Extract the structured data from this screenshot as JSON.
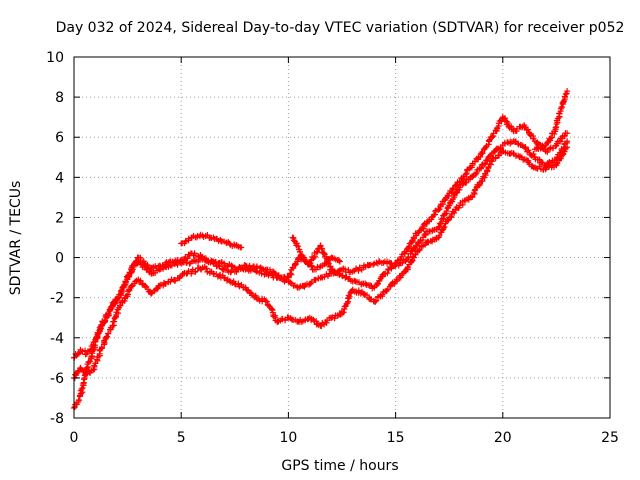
{
  "chart_data": {
    "type": "scatter",
    "title": "Day 032 of 2024, Sidereal Day-to-day VTEC variation (SDTVAR) for receiver p052",
    "xlabel": "GPS time / hours",
    "ylabel": "SDTVAR / TECUs",
    "xlim": [
      0,
      25
    ],
    "ylim": [
      -8,
      10
    ],
    "xticks": [
      0,
      5,
      10,
      15,
      20,
      25
    ],
    "yticks": [
      -8,
      -6,
      -4,
      -2,
      0,
      2,
      4,
      6,
      8,
      10
    ],
    "grid": true,
    "marker": "+",
    "color": "#ff0000",
    "series": [
      {
        "name": "main-track",
        "points": [
          [
            0.0,
            -7.5
          ],
          [
            0.2,
            -7.2
          ],
          [
            0.4,
            -6.5
          ],
          [
            0.6,
            -5.5
          ],
          [
            0.8,
            -5.0
          ],
          [
            1.0,
            -4.2
          ],
          [
            1.3,
            -3.4
          ],
          [
            1.6,
            -2.8
          ],
          [
            1.9,
            -2.2
          ],
          [
            2.2,
            -1.8
          ],
          [
            2.5,
            -1.0
          ],
          [
            2.8,
            -0.4
          ],
          [
            3.0,
            -0.2
          ],
          [
            3.3,
            -0.5
          ],
          [
            3.6,
            -0.8
          ],
          [
            4.0,
            -0.6
          ],
          [
            4.5,
            -0.4
          ],
          [
            5.0,
            -0.3
          ],
          [
            5.5,
            -0.2
          ],
          [
            6.0,
            -0.1
          ],
          [
            6.5,
            -0.2
          ],
          [
            7.0,
            -0.3
          ],
          [
            7.5,
            -0.5
          ],
          [
            8.0,
            -0.6
          ],
          [
            8.5,
            -0.7
          ],
          [
            9.0,
            -0.8
          ],
          [
            9.5,
            -1.0
          ],
          [
            10.0,
            -1.2
          ],
          [
            10.5,
            -1.5
          ],
          [
            11.0,
            -1.3
          ],
          [
            11.5,
            -1.0
          ],
          [
            12.0,
            -0.8
          ],
          [
            12.5,
            -0.6
          ],
          [
            13.0,
            -0.7
          ],
          [
            13.5,
            -0.5
          ],
          [
            14.0,
            -0.3
          ],
          [
            14.5,
            -0.2
          ],
          [
            15.0,
            -0.4
          ],
          [
            15.5,
            -0.1
          ],
          [
            16.0,
            0.6
          ],
          [
            16.5,
            1.3
          ],
          [
            17.0,
            1.5
          ],
          [
            17.5,
            2.6
          ],
          [
            18.0,
            3.5
          ],
          [
            18.5,
            4.0
          ],
          [
            19.0,
            4.5
          ],
          [
            19.5,
            5.2
          ],
          [
            20.0,
            5.6
          ],
          [
            20.5,
            5.8
          ],
          [
            21.0,
            5.5
          ],
          [
            21.5,
            5.0
          ],
          [
            22.0,
            4.6
          ],
          [
            22.5,
            4.9
          ],
          [
            23.0,
            5.8
          ]
        ]
      },
      {
        "name": "upper-track",
        "points": [
          [
            0.0,
            -5.0
          ],
          [
            0.3,
            -4.6
          ],
          [
            0.6,
            -4.8
          ],
          [
            0.9,
            -4.4
          ],
          [
            1.2,
            -3.5
          ],
          [
            1.5,
            -3.0
          ],
          [
            1.8,
            -2.4
          ],
          [
            2.1,
            -2.0
          ],
          [
            2.4,
            -1.2
          ],
          [
            2.7,
            -0.5
          ],
          [
            3.0,
            0.0
          ],
          [
            3.3,
            -0.3
          ],
          [
            3.6,
            -0.6
          ],
          [
            4.0,
            -0.4
          ],
          [
            4.5,
            -0.2
          ],
          [
            5.0,
            -0.2
          ],
          [
            5.5,
            0.2
          ],
          [
            6.0,
            0.0
          ],
          [
            6.5,
            -0.3
          ],
          [
            7.0,
            -0.6
          ],
          [
            7.5,
            -0.7
          ],
          [
            8.0,
            -0.4
          ],
          [
            8.5,
            -0.5
          ],
          [
            9.0,
            -0.6
          ],
          [
            9.5,
            -0.9
          ],
          [
            10.0,
            -1.0
          ],
          [
            10.5,
            0.0
          ],
          [
            11.0,
            -0.3
          ],
          [
            11.5,
            0.6
          ],
          [
            12.0,
            -0.6
          ],
          [
            12.5,
            -0.9
          ],
          [
            13.0,
            -1.2
          ],
          [
            13.5,
            -1.3
          ],
          [
            14.0,
            -1.5
          ],
          [
            14.5,
            -0.8
          ],
          [
            15.0,
            -0.3
          ],
          [
            15.5,
            0.3
          ],
          [
            16.0,
            1.2
          ],
          [
            16.5,
            1.8
          ],
          [
            17.0,
            2.4
          ],
          [
            17.5,
            3.2
          ],
          [
            18.0,
            3.8
          ],
          [
            18.5,
            4.5
          ],
          [
            19.0,
            5.2
          ],
          [
            19.5,
            6.0
          ],
          [
            20.0,
            7.0
          ],
          [
            20.5,
            6.3
          ],
          [
            21.0,
            6.6
          ],
          [
            21.5,
            5.8
          ],
          [
            22.0,
            5.3
          ],
          [
            22.5,
            5.6
          ],
          [
            23.0,
            6.2
          ]
        ]
      },
      {
        "name": "lower-track",
        "points": [
          [
            0.0,
            -6.0
          ],
          [
            0.3,
            -5.5
          ],
          [
            0.6,
            -5.8
          ],
          [
            0.9,
            -5.6
          ],
          [
            1.2,
            -4.8
          ],
          [
            1.5,
            -4.0
          ],
          [
            1.8,
            -3.4
          ],
          [
            2.1,
            -2.5
          ],
          [
            2.4,
            -2.0
          ],
          [
            2.7,
            -1.4
          ],
          [
            3.0,
            -1.1
          ],
          [
            3.3,
            -1.4
          ],
          [
            3.6,
            -1.8
          ],
          [
            4.0,
            -1.4
          ],
          [
            4.5,
            -1.2
          ],
          [
            5.0,
            -0.9
          ],
          [
            5.5,
            -0.7
          ],
          [
            6.0,
            -0.5
          ],
          [
            6.5,
            -0.8
          ],
          [
            7.0,
            -1.0
          ],
          [
            7.5,
            -1.3
          ],
          [
            8.0,
            -1.5
          ],
          [
            8.5,
            -2.0
          ],
          [
            9.0,
            -2.2
          ],
          [
            9.5,
            -3.2
          ],
          [
            10.0,
            -3.0
          ],
          [
            10.5,
            -3.2
          ],
          [
            11.0,
            -3.0
          ],
          [
            11.5,
            -3.4
          ],
          [
            12.0,
            -3.0
          ],
          [
            12.5,
            -2.8
          ],
          [
            13.0,
            -1.6
          ],
          [
            13.5,
            -1.8
          ],
          [
            14.0,
            -2.2
          ],
          [
            14.5,
            -1.7
          ],
          [
            15.0,
            -1.2
          ],
          [
            15.5,
            -0.6
          ],
          [
            16.0,
            0.3
          ],
          [
            16.5,
            0.8
          ],
          [
            17.0,
            1.0
          ],
          [
            17.5,
            2.0
          ],
          [
            18.0,
            2.6
          ],
          [
            18.5,
            3.0
          ],
          [
            19.0,
            3.8
          ],
          [
            19.5,
            4.8
          ],
          [
            20.0,
            5.3
          ],
          [
            20.5,
            5.2
          ],
          [
            21.0,
            4.9
          ],
          [
            21.5,
            4.5
          ],
          [
            22.0,
            4.4
          ],
          [
            22.5,
            4.6
          ],
          [
            23.0,
            5.5
          ]
        ]
      },
      {
        "name": "short-segment",
        "points": [
          [
            5.0,
            0.7
          ],
          [
            5.5,
            1.0
          ],
          [
            6.0,
            1.1
          ],
          [
            6.5,
            1.0
          ],
          [
            7.0,
            0.8
          ],
          [
            7.5,
            0.6
          ],
          [
            7.8,
            0.5
          ]
        ]
      },
      {
        "name": "end-rise",
        "points": [
          [
            21.5,
            5.4
          ],
          [
            22.0,
            5.6
          ],
          [
            22.4,
            6.3
          ],
          [
            22.7,
            7.3
          ],
          [
            22.9,
            8.0
          ],
          [
            23.0,
            8.3
          ]
        ]
      },
      {
        "name": "mid-bump",
        "points": [
          [
            10.2,
            1.0
          ],
          [
            10.5,
            0.4
          ],
          [
            10.8,
            -0.2
          ],
          [
            11.2,
            -0.6
          ],
          [
            11.6,
            -0.4
          ],
          [
            12.0,
            0.0
          ],
          [
            12.4,
            -0.2
          ]
        ]
      }
    ]
  }
}
